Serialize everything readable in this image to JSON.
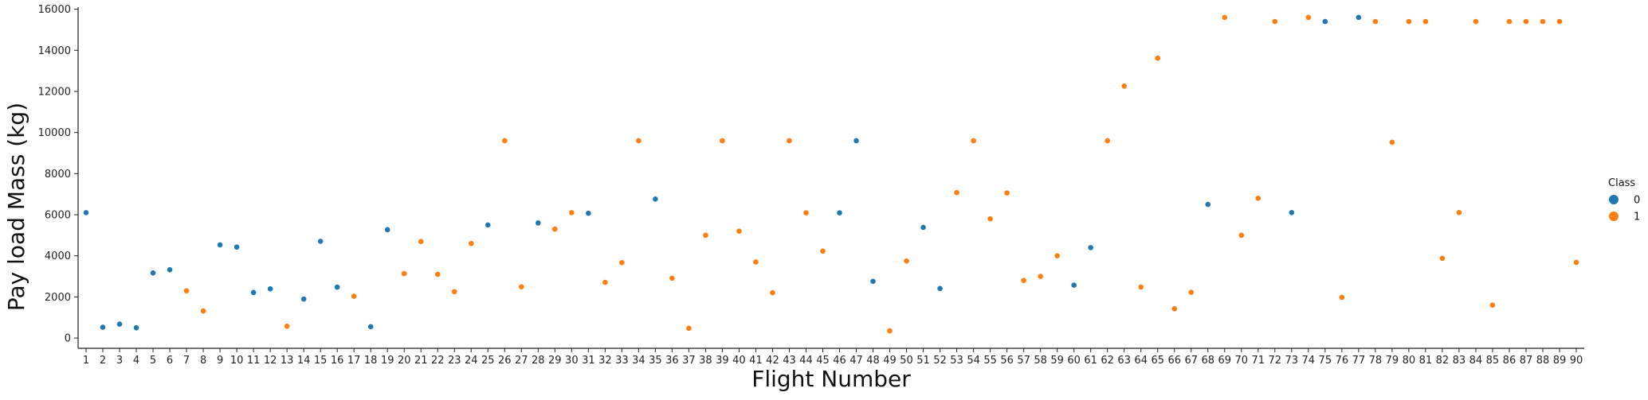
{
  "chart_data": {
    "type": "scatter",
    "title": "",
    "xlabel": "Flight Number",
    "ylabel": "Pay load Mass (kg)",
    "ylim": [
      -500,
      16100
    ],
    "yticks": [
      0,
      2000,
      4000,
      6000,
      8000,
      10000,
      12000,
      14000,
      16000
    ],
    "grid": false,
    "legend": {
      "title": "Class",
      "position": "right",
      "entries": [
        {
          "label": "0",
          "color": "#1f77b4"
        },
        {
          "label": "1",
          "color": "#ff7f0e"
        }
      ]
    },
    "categories": [
      "1",
      "2",
      "3",
      "4",
      "5",
      "6",
      "7",
      "8",
      "9",
      "10",
      "11",
      "12",
      "13",
      "14",
      "15",
      "16",
      "17",
      "18",
      "19",
      "20",
      "21",
      "22",
      "23",
      "24",
      "25",
      "26",
      "27",
      "28",
      "29",
      "30",
      "31",
      "32",
      "33",
      "34",
      "35",
      "36",
      "37",
      "38",
      "39",
      "40",
      "41",
      "42",
      "43",
      "44",
      "45",
      "46",
      "47",
      "48",
      "49",
      "50",
      "51",
      "52",
      "53",
      "54",
      "55",
      "56",
      "57",
      "58",
      "59",
      "60",
      "61",
      "62",
      "63",
      "64",
      "65",
      "66",
      "67",
      "68",
      "69",
      "70",
      "71",
      "72",
      "73",
      "74",
      "75",
      "76",
      "77",
      "78",
      "79",
      "80",
      "81",
      "82",
      "83",
      "84",
      "85",
      "86",
      "87",
      "88",
      "89",
      "90"
    ],
    "points": [
      {
        "x": "1",
        "y": 6100,
        "class": 0
      },
      {
        "x": "2",
        "y": 525,
        "class": 0
      },
      {
        "x": "3",
        "y": 677,
        "class": 0
      },
      {
        "x": "4",
        "y": 500,
        "class": 0
      },
      {
        "x": "5",
        "y": 3170,
        "class": 0
      },
      {
        "x": "6",
        "y": 3325,
        "class": 0
      },
      {
        "x": "7",
        "y": 2296,
        "class": 1
      },
      {
        "x": "8",
        "y": 1316,
        "class": 1
      },
      {
        "x": "9",
        "y": 4535,
        "class": 0
      },
      {
        "x": "10",
        "y": 4428,
        "class": 0
      },
      {
        "x": "11",
        "y": 2216,
        "class": 0
      },
      {
        "x": "12",
        "y": 2395,
        "class": 0
      },
      {
        "x": "13",
        "y": 570,
        "class": 1
      },
      {
        "x": "14",
        "y": 1898,
        "class": 0
      },
      {
        "x": "15",
        "y": 4707,
        "class": 0
      },
      {
        "x": "16",
        "y": 2477,
        "class": 0
      },
      {
        "x": "17",
        "y": 2034,
        "class": 1
      },
      {
        "x": "18",
        "y": 553,
        "class": 0
      },
      {
        "x": "19",
        "y": 5271,
        "class": 0
      },
      {
        "x": "20",
        "y": 3136,
        "class": 1
      },
      {
        "x": "21",
        "y": 4696,
        "class": 1
      },
      {
        "x": "22",
        "y": 3100,
        "class": 1
      },
      {
        "x": "23",
        "y": 2257,
        "class": 1
      },
      {
        "x": "24",
        "y": 4600,
        "class": 1
      },
      {
        "x": "25",
        "y": 5500,
        "class": 0
      },
      {
        "x": "26",
        "y": 9600,
        "class": 1
      },
      {
        "x": "27",
        "y": 2490,
        "class": 1
      },
      {
        "x": "28",
        "y": 5600,
        "class": 0
      },
      {
        "x": "29",
        "y": 5300,
        "class": 1
      },
      {
        "x": "30",
        "y": 6100,
        "class": 1
      },
      {
        "x": "31",
        "y": 6070,
        "class": 0
      },
      {
        "x": "32",
        "y": 2708,
        "class": 1
      },
      {
        "x": "33",
        "y": 3669,
        "class": 1
      },
      {
        "x": "34",
        "y": 9600,
        "class": 1
      },
      {
        "x": "35",
        "y": 6761,
        "class": 0
      },
      {
        "x": "36",
        "y": 2910,
        "class": 1
      },
      {
        "x": "37",
        "y": 475,
        "class": 1
      },
      {
        "x": "38",
        "y": 5000,
        "class": 1
      },
      {
        "x": "39",
        "y": 9600,
        "class": 1
      },
      {
        "x": "40",
        "y": 5200,
        "class": 1
      },
      {
        "x": "41",
        "y": 3700,
        "class": 1
      },
      {
        "x": "42",
        "y": 2205,
        "class": 1
      },
      {
        "x": "43",
        "y": 9600,
        "class": 1
      },
      {
        "x": "44",
        "y": 6092,
        "class": 1
      },
      {
        "x": "45",
        "y": 4230,
        "class": 1
      },
      {
        "x": "46",
        "y": 6092,
        "class": 0
      },
      {
        "x": "47",
        "y": 9600,
        "class": 0
      },
      {
        "x": "48",
        "y": 2760,
        "class": 0
      },
      {
        "x": "49",
        "y": 350,
        "class": 1
      },
      {
        "x": "50",
        "y": 3750,
        "class": 1
      },
      {
        "x": "51",
        "y": 5383,
        "class": 0
      },
      {
        "x": "52",
        "y": 2410,
        "class": 0
      },
      {
        "x": "53",
        "y": 7076,
        "class": 1
      },
      {
        "x": "54",
        "y": 9600,
        "class": 1
      },
      {
        "x": "55",
        "y": 5800,
        "class": 1
      },
      {
        "x": "56",
        "y": 7060,
        "class": 1
      },
      {
        "x": "57",
        "y": 2800,
        "class": 1
      },
      {
        "x": "58",
        "y": 3000,
        "class": 1
      },
      {
        "x": "59",
        "y": 4000,
        "class": 1
      },
      {
        "x": "60",
        "y": 2573,
        "class": 0
      },
      {
        "x": "61",
        "y": 4400,
        "class": 0
      },
      {
        "x": "62",
        "y": 9600,
        "class": 1
      },
      {
        "x": "63",
        "y": 12259,
        "class": 1
      },
      {
        "x": "64",
        "y": 2482,
        "class": 1
      },
      {
        "x": "65",
        "y": 13620,
        "class": 1
      },
      {
        "x": "66",
        "y": 1425,
        "class": 1
      },
      {
        "x": "67",
        "y": 2227,
        "class": 1
      },
      {
        "x": "68",
        "y": 6500,
        "class": 0
      },
      {
        "x": "69",
        "y": 15600,
        "class": 1
      },
      {
        "x": "70",
        "y": 5000,
        "class": 1
      },
      {
        "x": "71",
        "y": 6800,
        "class": 1
      },
      {
        "x": "72",
        "y": 15400,
        "class": 1
      },
      {
        "x": "73",
        "y": 6104,
        "class": 0
      },
      {
        "x": "74",
        "y": 15600,
        "class": 1
      },
      {
        "x": "75",
        "y": 15400,
        "class": 0
      },
      {
        "x": "76",
        "y": 1977,
        "class": 1
      },
      {
        "x": "77",
        "y": 15600,
        "class": 0
      },
      {
        "x": "78",
        "y": 15400,
        "class": 1
      },
      {
        "x": "79",
        "y": 9525,
        "class": 1
      },
      {
        "x": "80",
        "y": 15400,
        "class": 1
      },
      {
        "x": "81",
        "y": 15400,
        "class": 1
      },
      {
        "x": "82",
        "y": 3880,
        "class": 1
      },
      {
        "x": "83",
        "y": 6104,
        "class": 1
      },
      {
        "x": "84",
        "y": 15400,
        "class": 1
      },
      {
        "x": "85",
        "y": 1600,
        "class": 1
      },
      {
        "x": "86",
        "y": 15400,
        "class": 1
      },
      {
        "x": "87",
        "y": 15400,
        "class": 1
      },
      {
        "x": "88",
        "y": 15400,
        "class": 1
      },
      {
        "x": "89",
        "y": 15400,
        "class": 1
      },
      {
        "x": "90",
        "y": 3681,
        "class": 1
      }
    ]
  }
}
